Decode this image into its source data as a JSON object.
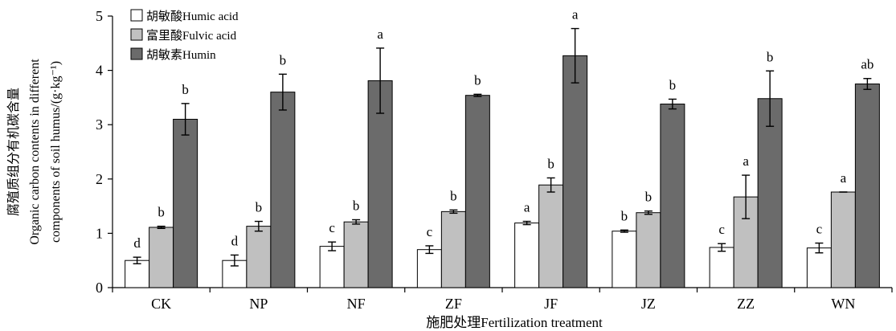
{
  "chart_data": {
    "type": "bar",
    "xlabel": "施肥处理Fertilization treatment",
    "ylabel": [
      "腐殖质组分有机碳含量",
      "Organic carbon contents in different",
      "components of soil humus/(g·kg⁻¹)"
    ],
    "ylim": [
      0,
      5
    ],
    "yticks": [
      "0",
      "1",
      "2",
      "3",
      "4",
      "5"
    ],
    "grid": false,
    "legend_position": "top-left",
    "categories": [
      "CK",
      "NP",
      "NF",
      "ZF",
      "JF",
      "JZ",
      "ZZ",
      "WN"
    ],
    "series": [
      {
        "name": "胡敏酸Humic acid",
        "color": "#ffffff",
        "values": [
          0.5,
          0.5,
          0.76,
          0.7,
          1.19,
          1.04,
          0.74,
          0.73
        ],
        "errors": [
          0.06,
          0.1,
          0.08,
          0.07,
          0.03,
          0.02,
          0.07,
          0.09
        ],
        "letters": [
          "d",
          "d",
          "c",
          "c",
          "a",
          "b",
          "c",
          "c"
        ]
      },
      {
        "name": "富里酸Fulvic acid",
        "color": "#c0c0c0",
        "values": [
          1.11,
          1.13,
          1.21,
          1.4,
          1.89,
          1.38,
          1.67,
          1.76
        ],
        "errors": [
          0.02,
          0.09,
          0.04,
          0.03,
          0.13,
          0.03,
          0.4,
          0.0
        ],
        "letters": [
          "b",
          "b",
          "b",
          "b",
          "b",
          "b",
          "a",
          "a"
        ]
      },
      {
        "name": "胡敏素Humin",
        "color": "#6b6b6b",
        "values": [
          3.1,
          3.6,
          3.81,
          3.54,
          4.27,
          3.38,
          3.48,
          3.75
        ],
        "errors": [
          0.29,
          0.33,
          0.6,
          0.02,
          0.5,
          0.09,
          0.51,
          0.1
        ],
        "letters": [
          "b",
          "b",
          "a",
          "b",
          "a",
          "b",
          "b",
          "ab"
        ]
      }
    ]
  }
}
